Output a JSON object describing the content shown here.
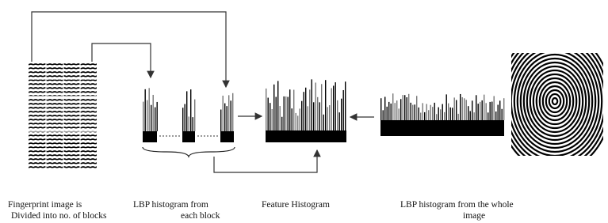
{
  "captions": [
    {
      "lines": [
        "Fingerprint image is",
        "Divided into no. of blocks"
      ]
    },
    {
      "lines": [
        "LBP histogram from",
        "each block"
      ]
    },
    {
      "lines": [
        "Feature  Histogram"
      ]
    },
    {
      "lines": [
        "LBP histogram from the whole",
        "image"
      ]
    }
  ]
}
